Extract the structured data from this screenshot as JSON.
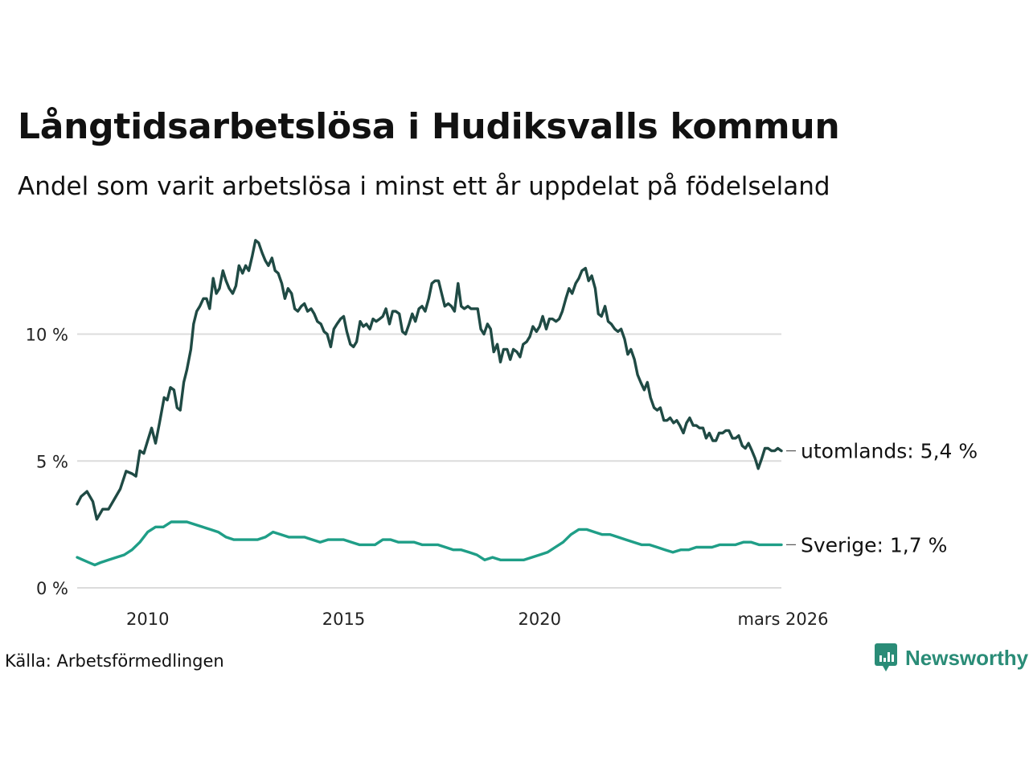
{
  "title": "Långtidsarbetslösa i Hudiksvalls kommun",
  "subtitle": "Andel som varit arbetslösa i minst ett år uppdelat på födelseland",
  "source": "Källa: Arbetsförmedlingen",
  "brand": {
    "name": "Newsworthy",
    "icon": "newsworthy-logo-icon",
    "color": "#2a8c77"
  },
  "chart_data": {
    "type": "line",
    "xlim": [
      2008.2,
      2026.17
    ],
    "ylim": [
      0,
      14
    ],
    "x_ticks": [
      {
        "value": 2010,
        "label": "2010"
      },
      {
        "value": 2015,
        "label": "2015"
      },
      {
        "value": 2020,
        "label": "2020"
      },
      {
        "value": 2026.17,
        "label": "mars 2026"
      }
    ],
    "y_ticks": [
      {
        "value": 0,
        "label": "0 %"
      },
      {
        "value": 5,
        "label": "5 %"
      },
      {
        "value": 10,
        "label": "10 %"
      }
    ],
    "grid": true,
    "series": [
      {
        "name": "utomlands",
        "end_label": "utomlands: 5,4 %",
        "color": "#1f4a44",
        "points": [
          [
            2008.2,
            3.3
          ],
          [
            2008.3,
            3.6
          ],
          [
            2008.45,
            3.8
          ],
          [
            2008.6,
            3.4
          ],
          [
            2008.7,
            2.7
          ],
          [
            2008.85,
            3.1
          ],
          [
            2009.0,
            3.1
          ],
          [
            2009.15,
            3.5
          ],
          [
            2009.3,
            3.9
          ],
          [
            2009.45,
            4.6
          ],
          [
            2009.6,
            4.5
          ],
          [
            2009.7,
            4.4
          ],
          [
            2009.8,
            5.4
          ],
          [
            2009.9,
            5.3
          ],
          [
            2010.0,
            5.8
          ],
          [
            2010.1,
            6.3
          ],
          [
            2010.2,
            5.7
          ],
          [
            2010.3,
            6.5
          ],
          [
            2010.42,
            7.5
          ],
          [
            2010.5,
            7.4
          ],
          [
            2010.58,
            7.9
          ],
          [
            2010.67,
            7.8
          ],
          [
            2010.75,
            7.1
          ],
          [
            2010.83,
            7.0
          ],
          [
            2010.92,
            8.1
          ],
          [
            2011.0,
            8.6
          ],
          [
            2011.1,
            9.4
          ],
          [
            2011.17,
            10.4
          ],
          [
            2011.25,
            10.9
          ],
          [
            2011.33,
            11.1
          ],
          [
            2011.42,
            11.4
          ],
          [
            2011.5,
            11.4
          ],
          [
            2011.58,
            11.0
          ],
          [
            2011.67,
            12.2
          ],
          [
            2011.75,
            11.6
          ],
          [
            2011.83,
            11.8
          ],
          [
            2011.92,
            12.5
          ],
          [
            2012.0,
            12.1
          ],
          [
            2012.08,
            11.8
          ],
          [
            2012.17,
            11.6
          ],
          [
            2012.25,
            11.9
          ],
          [
            2012.33,
            12.7
          ],
          [
            2012.42,
            12.4
          ],
          [
            2012.5,
            12.7
          ],
          [
            2012.58,
            12.5
          ],
          [
            2012.67,
            13.1
          ],
          [
            2012.75,
            13.7
          ],
          [
            2012.83,
            13.6
          ],
          [
            2012.92,
            13.2
          ],
          [
            2013.0,
            12.9
          ],
          [
            2013.08,
            12.7
          ],
          [
            2013.17,
            13.0
          ],
          [
            2013.25,
            12.5
          ],
          [
            2013.33,
            12.4
          ],
          [
            2013.42,
            12.0
          ],
          [
            2013.5,
            11.4
          ],
          [
            2013.58,
            11.8
          ],
          [
            2013.67,
            11.6
          ],
          [
            2013.75,
            11.0
          ],
          [
            2013.83,
            10.9
          ],
          [
            2013.92,
            11.1
          ],
          [
            2014.0,
            11.2
          ],
          [
            2014.08,
            10.9
          ],
          [
            2014.17,
            11.0
          ],
          [
            2014.25,
            10.8
          ],
          [
            2014.33,
            10.5
          ],
          [
            2014.42,
            10.4
          ],
          [
            2014.5,
            10.1
          ],
          [
            2014.58,
            10.0
          ],
          [
            2014.67,
            9.5
          ],
          [
            2014.75,
            10.2
          ],
          [
            2014.83,
            10.4
          ],
          [
            2014.92,
            10.6
          ],
          [
            2015.0,
            10.7
          ],
          [
            2015.08,
            10.1
          ],
          [
            2015.17,
            9.6
          ],
          [
            2015.25,
            9.5
          ],
          [
            2015.33,
            9.7
          ],
          [
            2015.42,
            10.5
          ],
          [
            2015.5,
            10.3
          ],
          [
            2015.58,
            10.4
          ],
          [
            2015.67,
            10.2
          ],
          [
            2015.75,
            10.6
          ],
          [
            2015.83,
            10.5
          ],
          [
            2015.92,
            10.6
          ],
          [
            2016.0,
            10.7
          ],
          [
            2016.08,
            11.0
          ],
          [
            2016.17,
            10.4
          ],
          [
            2016.25,
            10.9
          ],
          [
            2016.33,
            10.9
          ],
          [
            2016.42,
            10.8
          ],
          [
            2016.5,
            10.1
          ],
          [
            2016.58,
            10.0
          ],
          [
            2016.67,
            10.4
          ],
          [
            2016.75,
            10.8
          ],
          [
            2016.83,
            10.5
          ],
          [
            2016.92,
            11.0
          ],
          [
            2017.0,
            11.1
          ],
          [
            2017.08,
            10.9
          ],
          [
            2017.17,
            11.4
          ],
          [
            2017.25,
            12.0
          ],
          [
            2017.33,
            12.1
          ],
          [
            2017.42,
            12.1
          ],
          [
            2017.5,
            11.6
          ],
          [
            2017.58,
            11.1
          ],
          [
            2017.67,
            11.2
          ],
          [
            2017.75,
            11.1
          ],
          [
            2017.83,
            10.9
          ],
          [
            2017.92,
            12.0
          ],
          [
            2018.0,
            11.1
          ],
          [
            2018.08,
            11.0
          ],
          [
            2018.17,
            11.1
          ],
          [
            2018.25,
            11.0
          ],
          [
            2018.33,
            11.0
          ],
          [
            2018.42,
            11.0
          ],
          [
            2018.5,
            10.2
          ],
          [
            2018.58,
            10.0
          ],
          [
            2018.67,
            10.4
          ],
          [
            2018.75,
            10.2
          ],
          [
            2018.83,
            9.3
          ],
          [
            2018.92,
            9.6
          ],
          [
            2019.0,
            8.9
          ],
          [
            2019.08,
            9.4
          ],
          [
            2019.17,
            9.4
          ],
          [
            2019.25,
            9.0
          ],
          [
            2019.33,
            9.4
          ],
          [
            2019.42,
            9.3
          ],
          [
            2019.5,
            9.1
          ],
          [
            2019.58,
            9.6
          ],
          [
            2019.67,
            9.7
          ],
          [
            2019.75,
            9.9
          ],
          [
            2019.83,
            10.3
          ],
          [
            2019.92,
            10.1
          ],
          [
            2020.0,
            10.3
          ],
          [
            2020.08,
            10.7
          ],
          [
            2020.17,
            10.2
          ],
          [
            2020.25,
            10.6
          ],
          [
            2020.33,
            10.6
          ],
          [
            2020.42,
            10.5
          ],
          [
            2020.5,
            10.6
          ],
          [
            2020.58,
            10.9
          ],
          [
            2020.67,
            11.4
          ],
          [
            2020.75,
            11.8
          ],
          [
            2020.83,
            11.6
          ],
          [
            2020.92,
            12.0
          ],
          [
            2021.0,
            12.2
          ],
          [
            2021.08,
            12.5
          ],
          [
            2021.17,
            12.6
          ],
          [
            2021.25,
            12.1
          ],
          [
            2021.33,
            12.3
          ],
          [
            2021.42,
            11.8
          ],
          [
            2021.5,
            10.8
          ],
          [
            2021.58,
            10.7
          ],
          [
            2021.67,
            11.1
          ],
          [
            2021.75,
            10.5
          ],
          [
            2021.83,
            10.4
          ],
          [
            2021.92,
            10.2
          ],
          [
            2022.0,
            10.1
          ],
          [
            2022.08,
            10.2
          ],
          [
            2022.17,
            9.8
          ],
          [
            2022.25,
            9.2
          ],
          [
            2022.33,
            9.4
          ],
          [
            2022.42,
            9.0
          ],
          [
            2022.5,
            8.4
          ],
          [
            2022.58,
            8.1
          ],
          [
            2022.67,
            7.8
          ],
          [
            2022.75,
            8.1
          ],
          [
            2022.83,
            7.5
          ],
          [
            2022.92,
            7.1
          ],
          [
            2023.0,
            7.0
          ],
          [
            2023.08,
            7.1
          ],
          [
            2023.17,
            6.6
          ],
          [
            2023.25,
            6.6
          ],
          [
            2023.33,
            6.7
          ],
          [
            2023.42,
            6.5
          ],
          [
            2023.5,
            6.6
          ],
          [
            2023.58,
            6.4
          ],
          [
            2023.67,
            6.1
          ],
          [
            2023.75,
            6.5
          ],
          [
            2023.83,
            6.7
          ],
          [
            2023.92,
            6.4
          ],
          [
            2024.0,
            6.4
          ],
          [
            2024.08,
            6.3
          ],
          [
            2024.17,
            6.3
          ],
          [
            2024.25,
            5.9
          ],
          [
            2024.33,
            6.1
          ],
          [
            2024.42,
            5.8
          ],
          [
            2024.5,
            5.8
          ],
          [
            2024.58,
            6.1
          ],
          [
            2024.67,
            6.1
          ],
          [
            2024.75,
            6.2
          ],
          [
            2024.83,
            6.2
          ],
          [
            2024.92,
            5.9
          ],
          [
            2025.0,
            5.9
          ],
          [
            2025.08,
            6.0
          ],
          [
            2025.17,
            5.6
          ],
          [
            2025.25,
            5.5
          ],
          [
            2025.33,
            5.7
          ],
          [
            2025.42,
            5.4
          ],
          [
            2025.5,
            5.1
          ],
          [
            2025.58,
            4.7
          ],
          [
            2025.67,
            5.1
          ],
          [
            2025.75,
            5.5
          ],
          [
            2025.83,
            5.5
          ],
          [
            2025.92,
            5.4
          ],
          [
            2026.0,
            5.4
          ],
          [
            2026.08,
            5.5
          ],
          [
            2026.17,
            5.4
          ]
        ]
      },
      {
        "name": "Sverige",
        "end_label": "Sverige: 1,7 %",
        "color": "#1f9e87",
        "points": [
          [
            2008.2,
            1.2
          ],
          [
            2008.35,
            1.1
          ],
          [
            2008.5,
            1.0
          ],
          [
            2008.65,
            0.9
          ],
          [
            2008.8,
            1.0
          ],
          [
            2009.0,
            1.1
          ],
          [
            2009.2,
            1.2
          ],
          [
            2009.4,
            1.3
          ],
          [
            2009.6,
            1.5
          ],
          [
            2009.8,
            1.8
          ],
          [
            2010.0,
            2.2
          ],
          [
            2010.2,
            2.4
          ],
          [
            2010.4,
            2.4
          ],
          [
            2010.6,
            2.6
          ],
          [
            2010.8,
            2.6
          ],
          [
            2011.0,
            2.6
          ],
          [
            2011.2,
            2.5
          ],
          [
            2011.4,
            2.4
          ],
          [
            2011.6,
            2.3
          ],
          [
            2011.8,
            2.2
          ],
          [
            2012.0,
            2.0
          ],
          [
            2012.2,
            1.9
          ],
          [
            2012.4,
            1.9
          ],
          [
            2012.6,
            1.9
          ],
          [
            2012.8,
            1.9
          ],
          [
            2013.0,
            2.0
          ],
          [
            2013.2,
            2.2
          ],
          [
            2013.4,
            2.1
          ],
          [
            2013.6,
            2.0
          ],
          [
            2013.8,
            2.0
          ],
          [
            2014.0,
            2.0
          ],
          [
            2014.2,
            1.9
          ],
          [
            2014.4,
            1.8
          ],
          [
            2014.6,
            1.9
          ],
          [
            2014.8,
            1.9
          ],
          [
            2015.0,
            1.9
          ],
          [
            2015.2,
            1.8
          ],
          [
            2015.4,
            1.7
          ],
          [
            2015.6,
            1.7
          ],
          [
            2015.8,
            1.7
          ],
          [
            2016.0,
            1.9
          ],
          [
            2016.2,
            1.9
          ],
          [
            2016.4,
            1.8
          ],
          [
            2016.6,
            1.8
          ],
          [
            2016.8,
            1.8
          ],
          [
            2017.0,
            1.7
          ],
          [
            2017.2,
            1.7
          ],
          [
            2017.4,
            1.7
          ],
          [
            2017.6,
            1.6
          ],
          [
            2017.8,
            1.5
          ],
          [
            2018.0,
            1.5
          ],
          [
            2018.2,
            1.4
          ],
          [
            2018.4,
            1.3
          ],
          [
            2018.6,
            1.1
          ],
          [
            2018.8,
            1.2
          ],
          [
            2019.0,
            1.1
          ],
          [
            2019.2,
            1.1
          ],
          [
            2019.4,
            1.1
          ],
          [
            2019.6,
            1.1
          ],
          [
            2019.8,
            1.2
          ],
          [
            2020.0,
            1.3
          ],
          [
            2020.2,
            1.4
          ],
          [
            2020.4,
            1.6
          ],
          [
            2020.6,
            1.8
          ],
          [
            2020.8,
            2.1
          ],
          [
            2021.0,
            2.3
          ],
          [
            2021.2,
            2.3
          ],
          [
            2021.4,
            2.2
          ],
          [
            2021.6,
            2.1
          ],
          [
            2021.8,
            2.1
          ],
          [
            2022.0,
            2.0
          ],
          [
            2022.2,
            1.9
          ],
          [
            2022.4,
            1.8
          ],
          [
            2022.6,
            1.7
          ],
          [
            2022.8,
            1.7
          ],
          [
            2023.0,
            1.6
          ],
          [
            2023.2,
            1.5
          ],
          [
            2023.4,
            1.4
          ],
          [
            2023.6,
            1.5
          ],
          [
            2023.8,
            1.5
          ],
          [
            2024.0,
            1.6
          ],
          [
            2024.2,
            1.6
          ],
          [
            2024.4,
            1.6
          ],
          [
            2024.6,
            1.7
          ],
          [
            2024.8,
            1.7
          ],
          [
            2025.0,
            1.7
          ],
          [
            2025.2,
            1.8
          ],
          [
            2025.4,
            1.8
          ],
          [
            2025.6,
            1.7
          ],
          [
            2025.8,
            1.7
          ],
          [
            2026.0,
            1.7
          ],
          [
            2026.17,
            1.7
          ]
        ]
      }
    ]
  }
}
